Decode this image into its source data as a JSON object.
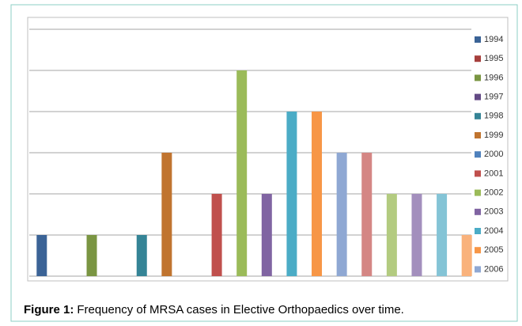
{
  "chart_data": {
    "type": "bar",
    "title_label": "Figure 1:",
    "title": "Frequency of MRSA cases in Elective Orthopaedics over time.",
    "categories": [
      "1994",
      "1995",
      "1996",
      "1997",
      "1998",
      "1999",
      "2000",
      "2001",
      "2002",
      "2003",
      "2004",
      "2005",
      "2006",
      null,
      null,
      null,
      null,
      null
    ],
    "values": [
      1,
      0,
      1,
      0,
      1,
      3,
      0,
      2,
      5,
      2,
      4,
      4,
      3,
      3,
      2,
      2,
      2,
      1
    ],
    "colors": [
      "#3b6396",
      "#a63f3c",
      "#7a9542",
      "#634a85",
      "#358496",
      "#c0742f",
      "#4f81bd",
      "#c0504d",
      "#9bbb59",
      "#8064a2",
      "#4bacc6",
      "#f79646",
      "#8fa8d3",
      "#d48684",
      "#b3cb80",
      "#a38fbd",
      "#84c4d6",
      "#f9b27c"
    ],
    "ylim": [
      0,
      6
    ],
    "yticks": [
      0,
      1,
      2,
      3,
      4,
      5,
      6
    ],
    "grid": true,
    "legend": "right"
  }
}
